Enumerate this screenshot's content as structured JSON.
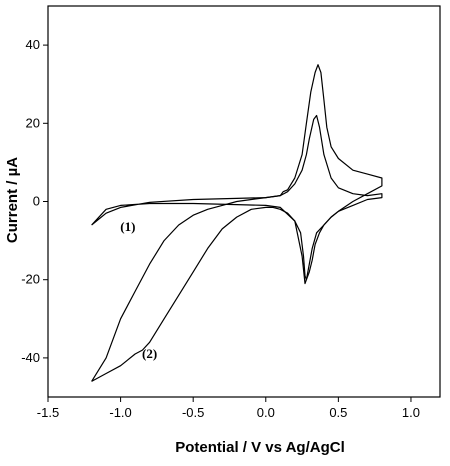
{
  "chart_data": {
    "type": "line",
    "xlabel": "Potential / V vs Ag/AgCl",
    "ylabel": "Current / µA",
    "xlim": [
      -1.5,
      1.2
    ],
    "ylim": [
      -50,
      50
    ],
    "x_ticks": [
      -1.5,
      -1.0,
      -0.5,
      0.0,
      0.5,
      1.0
    ],
    "x_tick_labels": [
      "-1.5",
      "-1.0",
      "-0.5",
      "0.0",
      "0.5",
      "1.0"
    ],
    "y_ticks": [
      -40,
      -20,
      0,
      20,
      40
    ],
    "y_tick_labels": [
      "-40",
      "-20",
      "0",
      "20",
      "40"
    ],
    "grid": false,
    "annotations": [
      {
        "text": "(1)",
        "x": -0.95,
        "y": -7.5
      },
      {
        "text": "(2)",
        "x": -0.8,
        "y": -40
      }
    ],
    "series": [
      {
        "label": "(1)",
        "x": [
          -1.2,
          -1.15,
          -1.1,
          -1.0,
          -0.8,
          -0.5,
          -0.2,
          0.0,
          0.1,
          0.15,
          0.2,
          0.25,
          0.28,
          0.3,
          0.33,
          0.35,
          0.37,
          0.4,
          0.45,
          0.5,
          0.6,
          0.7,
          0.8,
          0.8,
          0.7,
          0.6,
          0.5,
          0.45,
          0.4,
          0.35,
          0.32,
          0.3,
          0.28,
          0.27,
          0.25,
          0.2,
          0.1,
          0.0,
          -0.2,
          -0.5,
          -0.8,
          -1.0,
          -1.1,
          -1.2
        ],
        "y": [
          -6,
          -4.5,
          -3,
          -1.5,
          -0.2,
          0.5,
          0.8,
          1.0,
          1.5,
          2.5,
          4.5,
          8,
          12,
          16,
          21,
          22,
          19,
          12,
          6,
          3.5,
          2,
          1.5,
          2,
          1,
          0.5,
          -1,
          -2.5,
          -4,
          -6,
          -8,
          -12,
          -16,
          -20,
          -21,
          -14,
          -5,
          -1.5,
          -1,
          -0.8,
          -0.5,
          -0.5,
          -1,
          -2,
          -6
        ]
      },
      {
        "label": "(2)",
        "x": [
          -1.2,
          -1.1,
          -1.0,
          -0.9,
          -0.8,
          -0.7,
          -0.6,
          -0.5,
          -0.4,
          -0.3,
          -0.2,
          -0.1,
          0.0,
          0.1,
          0.12,
          0.15,
          0.2,
          0.25,
          0.28,
          0.31,
          0.34,
          0.36,
          0.38,
          0.4,
          0.42,
          0.45,
          0.5,
          0.6,
          0.7,
          0.8,
          0.8,
          0.7,
          0.6,
          0.5,
          0.45,
          0.4,
          0.37,
          0.34,
          0.32,
          0.3,
          0.28,
          0.27,
          0.26,
          0.24,
          0.2,
          0.15,
          0.1,
          0.05,
          0.0,
          -0.1,
          -0.2,
          -0.3,
          -0.4,
          -0.5,
          -0.6,
          -0.7,
          -0.8,
          -0.85,
          -0.9,
          -1.0,
          -1.1,
          -1.2
        ],
        "y": [
          -46,
          -40,
          -30,
          -23,
          -16,
          -10,
          -6,
          -3.5,
          -2,
          -1,
          0,
          0.5,
          1,
          1.5,
          2.5,
          3,
          6,
          12,
          20,
          28,
          33,
          35,
          33,
          26,
          19,
          14,
          11,
          8,
          7,
          6,
          4,
          2,
          0,
          -2.5,
          -4,
          -6,
          -8,
          -11,
          -15,
          -18,
          -20,
          -19,
          -14,
          -8,
          -5,
          -3,
          -2,
          -1.5,
          -1.5,
          -2,
          -4,
          -7,
          -12,
          -18,
          -24,
          -30,
          -36,
          -38,
          -39,
          -42,
          -44,
          -46
        ]
      }
    ]
  }
}
